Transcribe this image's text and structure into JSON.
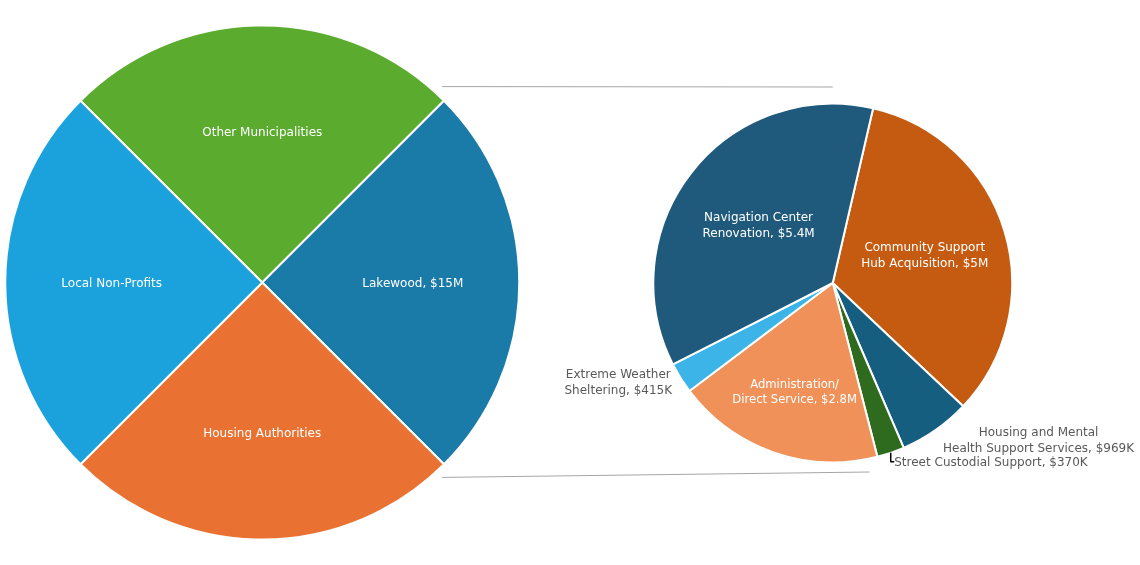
{
  "chart_data": [
    {
      "type": "pie",
      "categories": [
        "Other Municipalities",
        "Lakewood",
        "Housing Authorities",
        "Local Non-Profits"
      ],
      "values": [
        15000000,
        15000000,
        15000000,
        15000000
      ],
      "value_labels": [
        null,
        "$15M",
        null,
        null
      ],
      "colors": [
        "#5aab2e",
        "#1a7aa8",
        "#e97132",
        "#1ba1dc"
      ]
    },
    {
      "type": "pie",
      "categories": [
        "Community Support Hub Acquisition",
        "Housing and Mental Health Support Services",
        "Street Custodial Support",
        "Administration/ Direct Service",
        "Extreme Weather Sheltering",
        "Navigation Center Renovation"
      ],
      "values": [
        5000000,
        969000,
        370000,
        2800000,
        415000,
        5400000
      ],
      "value_labels": [
        "$5M",
        "$969K",
        "$370K",
        "$2.8M",
        "$415K",
        "$5.4M"
      ],
      "colors": [
        "#c55a11",
        "#155e80",
        "#2e6b1f",
        "#f0915a",
        "#3cb4e8",
        "#1f5a7d"
      ]
    }
  ]
}
